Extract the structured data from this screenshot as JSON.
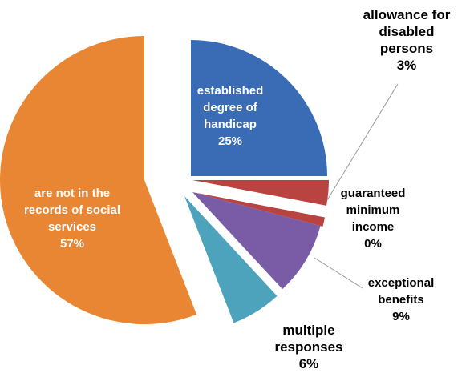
{
  "chart_data": {
    "type": "pie",
    "title": "",
    "exploded": true,
    "legend": "none",
    "slices": [
      {
        "label_lines": [
          "established",
          "degree of",
          "handicap"
        ],
        "value": 25,
        "value_label": "25%",
        "color": "#3A6BB5",
        "label_position": "inside"
      },
      {
        "label_lines": [
          "allowance for",
          "disabled",
          "persons"
        ],
        "value": 3,
        "value_label": "3%",
        "color": "#B84340",
        "label_position": "outside"
      },
      {
        "label_lines": [
          "guaranteed",
          "minimum",
          "income"
        ],
        "value": 0,
        "value_label": "0%",
        "color": "#B84340",
        "label_position": "outside"
      },
      {
        "label_lines": [
          "exceptional",
          "benefits"
        ],
        "value": 9,
        "value_label": "9%",
        "color": "#7A5BA6",
        "label_position": "outside"
      },
      {
        "label_lines": [
          "multiple",
          "responses"
        ],
        "value": 6,
        "value_label": "6%",
        "color": "#4DA3BC",
        "label_position": "outside"
      },
      {
        "label_lines": [
          "are not in the",
          "records of social",
          "services"
        ],
        "value": 57,
        "value_label": "57%",
        "color": "#E88634",
        "label_position": "inside"
      }
    ]
  }
}
